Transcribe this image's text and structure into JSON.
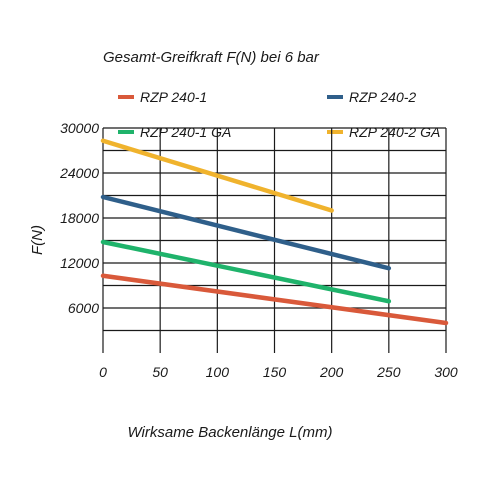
{
  "chart_data": {
    "type": "line",
    "title": "Gesamt-Greifkraft F(N) bei 6 bar",
    "xlabel": "Wirksame Backenlänge L(mm)",
    "ylabel": "F(N)",
    "xlim": [
      0,
      300
    ],
    "ylim": [
      0,
      30000
    ],
    "x_ticks": [
      "0",
      "50",
      "100",
      "150",
      "200",
      "250",
      "300"
    ],
    "y_ticks": [
      "6000",
      "12000",
      "18000",
      "24000",
      "30000"
    ],
    "grid": true,
    "legend_position": "top",
    "series": [
      {
        "name": "RZP 240-1",
        "color": "#d9593a",
        "x": [
          0,
          300
        ],
        "y": [
          10300,
          4000
        ]
      },
      {
        "name": "RZP 240-2",
        "color": "#2f5f8a",
        "x": [
          0,
          250
        ],
        "y": [
          20800,
          11300
        ]
      },
      {
        "name": "RZP 240-1 GA",
        "color": "#1fb36b",
        "x": [
          0,
          250
        ],
        "y": [
          14800,
          6900
        ]
      },
      {
        "name": "RZP 240-2 GA",
        "color": "#f0b32d",
        "x": [
          0,
          200
        ],
        "y": [
          28300,
          19000
        ]
      }
    ]
  }
}
